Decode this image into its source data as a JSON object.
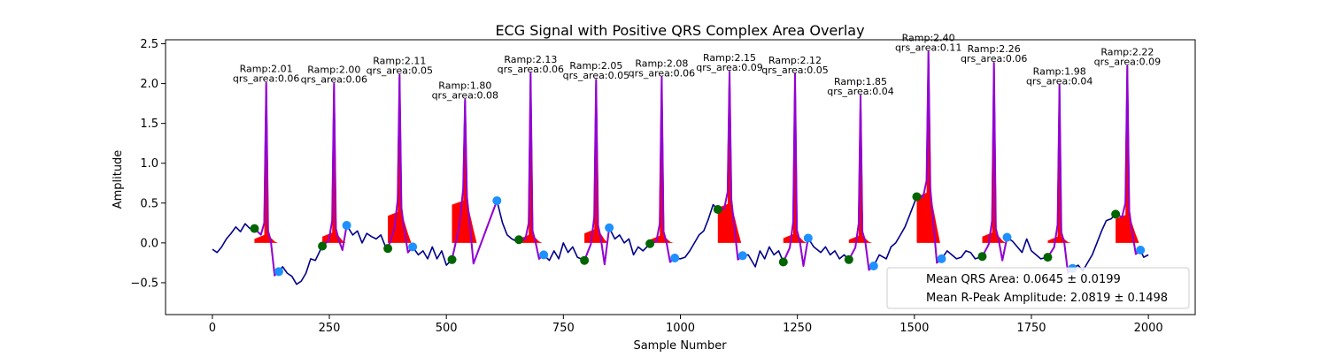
{
  "chart_data": {
    "type": "line",
    "title": "ECG Signal with Positive QRS Complex Area Overlay",
    "xlabel": "Sample Number",
    "ylabel": "Amplitude",
    "xlim": [
      -100,
      2100
    ],
    "ylim": [
      -0.9,
      2.55
    ],
    "xticks": [
      0,
      250,
      500,
      750,
      1000,
      1250,
      1500,
      1750,
      2000
    ],
    "yticks": [
      -0.5,
      0.0,
      0.5,
      1.0,
      1.5,
      2.0,
      2.5
    ],
    "xtick_labels": [
      "0",
      "250",
      "500",
      "750",
      "1000",
      "1250",
      "1500",
      "1750",
      "2000"
    ],
    "ytick_labels": [
      "−0.5",
      "0.0",
      "0.5",
      "1.0",
      "1.5",
      "2.0",
      "2.5"
    ],
    "grid": false,
    "colors": {
      "ecg": "#00008b",
      "qrs_segment": "#9400d3",
      "qrs_area": "#ff0000",
      "onset_marker": "#006400",
      "offset_marker": "#1e90ff"
    },
    "beats": [
      {
        "r_sample": 115,
        "r_amp": 2.01,
        "qrs_area": 0.06,
        "onset_sample": 90,
        "onset_amp": 0.18,
        "offset_sample": 142,
        "offset_amp": -0.36,
        "area_base": 0.0,
        "area_shoulder": 0.05
      },
      {
        "r_sample": 260,
        "r_amp": 2.0,
        "qrs_area": 0.06,
        "onset_sample": 235,
        "onset_amp": -0.04,
        "offset_sample": 287,
        "offset_amp": 0.22,
        "area_base": 0.0,
        "area_shoulder": 0.08
      },
      {
        "r_sample": 400,
        "r_amp": 2.11,
        "qrs_area": 0.05,
        "onset_sample": 375,
        "onset_amp": -0.07,
        "offset_sample": 428,
        "offset_amp": -0.05,
        "area_base": 0.0,
        "area_shoulder": 0.34
      },
      {
        "r_sample": 540,
        "r_amp": 1.8,
        "qrs_area": 0.08,
        "onset_sample": 512,
        "onset_amp": -0.21,
        "offset_sample": 608,
        "offset_amp": 0.53,
        "area_base": 0.0,
        "area_shoulder": 0.48
      },
      {
        "r_sample": 680,
        "r_amp": 2.13,
        "qrs_area": 0.06,
        "onset_sample": 655,
        "onset_amp": 0.04,
        "offset_sample": 708,
        "offset_amp": -0.15,
        "area_base": 0.0,
        "area_shoulder": 0.05
      },
      {
        "r_sample": 820,
        "r_amp": 2.05,
        "qrs_area": 0.05,
        "onset_sample": 795,
        "onset_amp": -0.22,
        "offset_sample": 848,
        "offset_amp": 0.19,
        "area_base": 0.0,
        "area_shoulder": 0.12
      },
      {
        "r_sample": 960,
        "r_amp": 2.08,
        "qrs_area": 0.06,
        "onset_sample": 935,
        "onset_amp": -0.01,
        "offset_sample": 988,
        "offset_amp": -0.19,
        "area_base": 0.0,
        "area_shoulder": 0.04
      },
      {
        "r_sample": 1105,
        "r_amp": 2.15,
        "qrs_area": 0.09,
        "onset_sample": 1080,
        "onset_amp": 0.42,
        "offset_sample": 1133,
        "offset_amp": -0.16,
        "area_base": 0.0,
        "area_shoulder": 0.44
      },
      {
        "r_sample": 1245,
        "r_amp": 2.12,
        "qrs_area": 0.05,
        "onset_sample": 1220,
        "onset_amp": -0.24,
        "offset_sample": 1273,
        "offset_amp": 0.06,
        "area_base": 0.0,
        "area_shoulder": 0.06
      },
      {
        "r_sample": 1385,
        "r_amp": 1.85,
        "qrs_area": 0.04,
        "onset_sample": 1360,
        "onset_amp": -0.21,
        "offset_sample": 1413,
        "offset_amp": -0.29,
        "area_base": 0.0,
        "area_shoulder": 0.04
      },
      {
        "r_sample": 1530,
        "r_amp": 2.4,
        "qrs_area": 0.11,
        "onset_sample": 1505,
        "onset_amp": 0.58,
        "offset_sample": 1558,
        "offset_amp": -0.2,
        "area_base": 0.0,
        "area_shoulder": 0.58
      },
      {
        "r_sample": 1670,
        "r_amp": 2.26,
        "qrs_area": 0.06,
        "onset_sample": 1645,
        "onset_amp": -0.17,
        "offset_sample": 1698,
        "offset_amp": 0.07,
        "area_base": 0.0,
        "area_shoulder": 0.08
      },
      {
        "r_sample": 1810,
        "r_amp": 1.98,
        "qrs_area": 0.04,
        "onset_sample": 1785,
        "onset_amp": -0.18,
        "offset_sample": 1838,
        "offset_amp": -0.32,
        "area_base": 0.0,
        "area_shoulder": 0.03
      },
      {
        "r_sample": 1955,
        "r_amp": 2.22,
        "qrs_area": 0.09,
        "onset_sample": 1930,
        "onset_amp": 0.36,
        "offset_sample": 1983,
        "offset_amp": -0.09,
        "area_base": 0.0,
        "area_shoulder": 0.3
      }
    ],
    "baseline_points": [
      [
        0,
        -0.08
      ],
      [
        10,
        -0.12
      ],
      [
        20,
        -0.05
      ],
      [
        30,
        0.05
      ],
      [
        40,
        0.12
      ],
      [
        50,
        0.2
      ],
      [
        60,
        0.14
      ],
      [
        70,
        0.24
      ],
      [
        80,
        0.18
      ],
      [
        90,
        0.18
      ],
      [
        140,
        -0.36
      ],
      [
        150,
        -0.3
      ],
      [
        160,
        -0.38
      ],
      [
        170,
        -0.42
      ],
      [
        180,
        -0.52
      ],
      [
        190,
        -0.48
      ],
      [
        200,
        -0.38
      ],
      [
        210,
        -0.2
      ],
      [
        220,
        -0.22
      ],
      [
        230,
        -0.1
      ],
      [
        235,
        -0.04
      ],
      [
        287,
        0.22
      ],
      [
        300,
        0.1
      ],
      [
        310,
        0.15
      ],
      [
        320,
        0.0
      ],
      [
        330,
        0.12
      ],
      [
        340,
        0.08
      ],
      [
        350,
        0.05
      ],
      [
        360,
        0.1
      ],
      [
        370,
        -0.05
      ],
      [
        375,
        -0.07
      ],
      [
        428,
        -0.05
      ],
      [
        440,
        -0.15
      ],
      [
        450,
        -0.1
      ],
      [
        460,
        -0.2
      ],
      [
        470,
        -0.05
      ],
      [
        480,
        -0.2
      ],
      [
        490,
        -0.1
      ],
      [
        500,
        -0.28
      ],
      [
        512,
        -0.21
      ],
      [
        608,
        0.53
      ],
      [
        620,
        0.25
      ],
      [
        630,
        0.1
      ],
      [
        640,
        0.05
      ],
      [
        650,
        0.02
      ],
      [
        655,
        0.04
      ],
      [
        708,
        -0.15
      ],
      [
        720,
        -0.22
      ],
      [
        730,
        -0.1
      ],
      [
        740,
        -0.2
      ],
      [
        750,
        0.0
      ],
      [
        760,
        -0.12
      ],
      [
        770,
        -0.05
      ],
      [
        780,
        -0.18
      ],
      [
        795,
        -0.22
      ],
      [
        848,
        0.19
      ],
      [
        860,
        0.05
      ],
      [
        870,
        0.1
      ],
      [
        880,
        0.0
      ],
      [
        890,
        0.05
      ],
      [
        900,
        -0.15
      ],
      [
        910,
        -0.05
      ],
      [
        920,
        -0.1
      ],
      [
        935,
        -0.01
      ],
      [
        988,
        -0.19
      ],
      [
        1000,
        -0.2
      ],
      [
        1010,
        -0.18
      ],
      [
        1020,
        -0.1
      ],
      [
        1030,
        0.0
      ],
      [
        1040,
        0.1
      ],
      [
        1050,
        0.15
      ],
      [
        1060,
        0.3
      ],
      [
        1070,
        0.48
      ],
      [
        1080,
        0.42
      ],
      [
        1133,
        -0.16
      ],
      [
        1145,
        -0.15
      ],
      [
        1160,
        -0.3
      ],
      [
        1170,
        -0.1
      ],
      [
        1180,
        -0.2
      ],
      [
        1190,
        -0.05
      ],
      [
        1200,
        -0.15
      ],
      [
        1210,
        -0.1
      ],
      [
        1220,
        -0.24
      ],
      [
        1273,
        0.06
      ],
      [
        1285,
        -0.05
      ],
      [
        1300,
        -0.12
      ],
      [
        1310,
        -0.05
      ],
      [
        1320,
        -0.15
      ],
      [
        1330,
        -0.1
      ],
      [
        1340,
        -0.2
      ],
      [
        1350,
        -0.15
      ],
      [
        1360,
        -0.21
      ],
      [
        1413,
        -0.29
      ],
      [
        1425,
        -0.15
      ],
      [
        1440,
        -0.2
      ],
      [
        1450,
        -0.05
      ],
      [
        1460,
        0.0
      ],
      [
        1470,
        0.1
      ],
      [
        1480,
        0.2
      ],
      [
        1490,
        0.35
      ],
      [
        1505,
        0.58
      ],
      [
        1558,
        -0.2
      ],
      [
        1570,
        -0.1
      ],
      [
        1580,
        -0.15
      ],
      [
        1590,
        -0.2
      ],
      [
        1600,
        -0.18
      ],
      [
        1610,
        -0.1
      ],
      [
        1620,
        -0.12
      ],
      [
        1630,
        -0.2
      ],
      [
        1645,
        -0.17
      ],
      [
        1698,
        0.07
      ],
      [
        1710,
        0.02
      ],
      [
        1720,
        -0.05
      ],
      [
        1730,
        -0.12
      ],
      [
        1740,
        0.05
      ],
      [
        1750,
        -0.1
      ],
      [
        1760,
        -0.15
      ],
      [
        1770,
        -0.2
      ],
      [
        1785,
        -0.18
      ],
      [
        1838,
        -0.32
      ],
      [
        1850,
        -0.28
      ],
      [
        1860,
        -0.35
      ],
      [
        1870,
        -0.25
      ],
      [
        1880,
        -0.15
      ],
      [
        1890,
        0.0
      ],
      [
        1900,
        0.15
      ],
      [
        1910,
        0.28
      ],
      [
        1920,
        0.3
      ],
      [
        1930,
        0.36
      ],
      [
        1983,
        -0.09
      ],
      [
        1990,
        -0.18
      ],
      [
        2000,
        -0.15
      ]
    ],
    "legend": {
      "position": "lower-right",
      "entries": [
        "Mean QRS Area: 0.0645 ± 0.0199",
        "Mean R-Peak Amplitude: 2.0819 ± 0.1498"
      ]
    }
  }
}
